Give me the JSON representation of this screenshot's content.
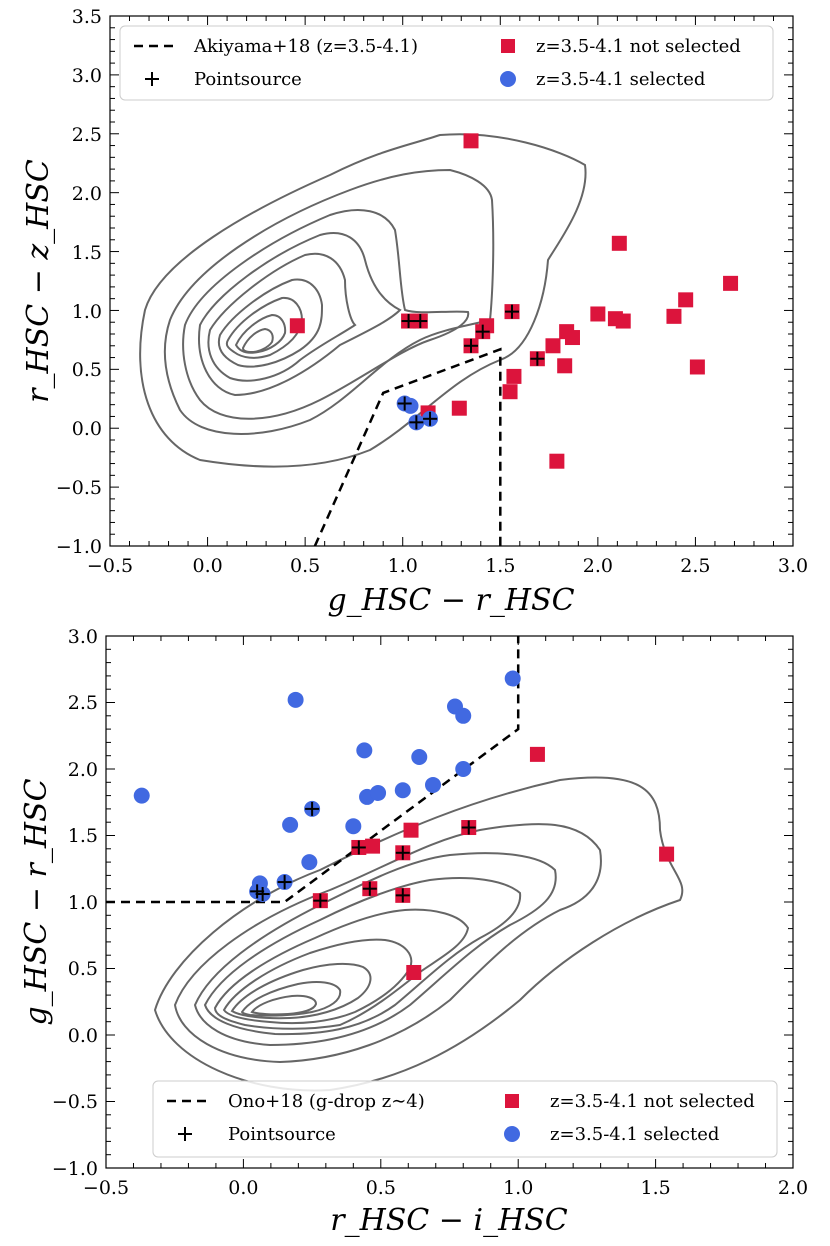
{
  "colors": {
    "not_selected": "#dc143c",
    "selected": "#4169e1",
    "contour": "#666666",
    "line": "#000000"
  },
  "chart_data": [
    {
      "type": "scatter",
      "xlabel": "g_HSC − r_HSC",
      "ylabel": "r_HSC − z_HSC",
      "xlim": [
        -0.5,
        3.0
      ],
      "ylim": [
        -1.0,
        3.5
      ],
      "xticks": [
        "−0.5",
        "0.0",
        "0.5",
        "1.0",
        "1.5",
        "2.0",
        "2.5",
        "3.0"
      ],
      "yticks": [
        "−1.0",
        "−0.5",
        "0.0",
        "0.5",
        "1.0",
        "1.5",
        "2.0",
        "2.5",
        "3.0",
        "3.5"
      ],
      "legend": {
        "placement": "top",
        "entries": [
          {
            "label": "Akiyama+18 (z=3.5-4.1)",
            "marker": "dashed-line"
          },
          {
            "label": "Pointsource",
            "marker": "plus"
          },
          {
            "label": "z=3.5-4.1 not selected",
            "marker": "square"
          },
          {
            "label": "z=3.5-4.1 selected",
            "marker": "circle"
          }
        ]
      },
      "selection_line": [
        [
          0.55,
          -1.0
        ],
        [
          0.9,
          0.3
        ],
        [
          1.5,
          0.67
        ],
        [
          1.5,
          -1.0
        ]
      ],
      "series": [
        {
          "name": "z=3.5-4.1 not selected",
          "points": [
            [
              0.46,
              0.87
            ],
            [
              1.03,
              0.91
            ],
            [
              1.09,
              0.91
            ],
            [
              1.35,
              2.44
            ],
            [
              1.35,
              0.7
            ],
            [
              1.41,
              0.82
            ],
            [
              1.43,
              0.87
            ],
            [
              1.56,
              0.99
            ],
            [
              1.55,
              0.31
            ],
            [
              1.57,
              0.44
            ],
            [
              1.29,
              0.17
            ],
            [
              1.13,
              0.13
            ],
            [
              1.69,
              0.59
            ],
            [
              1.77,
              0.7
            ],
            [
              1.79,
              -0.28
            ],
            [
              1.83,
              0.53
            ],
            [
              1.84,
              0.82
            ],
            [
              1.87,
              0.77
            ],
            [
              2.0,
              0.97
            ],
            [
              2.09,
              0.93
            ],
            [
              2.13,
              0.91
            ],
            [
              2.11,
              1.57
            ],
            [
              2.39,
              0.95
            ],
            [
              2.45,
              1.09
            ],
            [
              2.51,
              0.52
            ],
            [
              2.68,
              1.23
            ]
          ]
        },
        {
          "name": "z=3.5-4.1 selected",
          "points": [
            [
              1.01,
              0.21
            ],
            [
              1.04,
              0.19
            ],
            [
              1.07,
              0.05
            ],
            [
              1.14,
              0.08
            ]
          ]
        },
        {
          "name": "Pointsource",
          "points": [
            [
              1.03,
              0.91
            ],
            [
              1.09,
              0.91
            ],
            [
              1.35,
              0.7
            ],
            [
              1.41,
              0.82
            ],
            [
              1.56,
              0.99
            ],
            [
              1.69,
              0.59
            ],
            [
              1.01,
              0.21
            ],
            [
              1.07,
              0.05
            ],
            [
              1.14,
              0.08
            ]
          ]
        }
      ]
    },
    {
      "type": "scatter",
      "xlabel": "r_HSC − i_HSC",
      "ylabel": "g_HSC − r_HSC",
      "xlim": [
        -0.5,
        2.0
      ],
      "ylim": [
        -1.0,
        3.0
      ],
      "xticks": [
        "−0.5",
        "0.0",
        "0.5",
        "1.0",
        "1.5",
        "2.0"
      ],
      "yticks": [
        "−1.0",
        "−0.5",
        "0.0",
        "0.5",
        "1.0",
        "1.5",
        "2.0",
        "2.5",
        "3.0"
      ],
      "legend": {
        "placement": "bottom",
        "entries": [
          {
            "label": "Ono+18 (g-drop z∼4)",
            "marker": "dashed-line"
          },
          {
            "label": "Pointsource",
            "marker": "plus"
          },
          {
            "label": "z=3.5-4.1 not selected",
            "marker": "square"
          },
          {
            "label": "z=3.5-4.1 selected",
            "marker": "circle"
          }
        ]
      },
      "selection_line": [
        [
          -0.5,
          1.0
        ],
        [
          0.15,
          1.0
        ],
        [
          1.0,
          2.3
        ],
        [
          1.0,
          3.0
        ]
      ],
      "series": [
        {
          "name": "z=3.5-4.1 not selected",
          "points": [
            [
              0.28,
              1.01
            ],
            [
              0.42,
              1.41
            ],
            [
              0.47,
              1.42
            ],
            [
              0.46,
              1.1
            ],
            [
              0.58,
              1.37
            ],
            [
              0.58,
              1.05
            ],
            [
              0.61,
              1.54
            ],
            [
              0.62,
              0.47
            ],
            [
              0.82,
              1.56
            ],
            [
              1.07,
              2.11
            ],
            [
              1.54,
              1.36
            ]
          ]
        },
        {
          "name": "z=3.5-4.1 selected",
          "points": [
            [
              -0.37,
              1.8
            ],
            [
              0.05,
              1.08
            ],
            [
              0.06,
              1.14
            ],
            [
              0.07,
              1.06
            ],
            [
              0.15,
              1.15
            ],
            [
              0.17,
              1.58
            ],
            [
              0.19,
              2.52
            ],
            [
              0.24,
              1.3
            ],
            [
              0.25,
              1.7
            ],
            [
              0.4,
              1.57
            ],
            [
              0.44,
              2.14
            ],
            [
              0.45,
              1.79
            ],
            [
              0.49,
              1.82
            ],
            [
              0.58,
              1.84
            ],
            [
              0.64,
              2.09
            ],
            [
              0.69,
              1.88
            ],
            [
              0.77,
              2.47
            ],
            [
              0.8,
              2.4
            ],
            [
              0.8,
              2.0
            ],
            [
              0.98,
              2.68
            ]
          ]
        },
        {
          "name": "Pointsource",
          "points": [
            [
              0.05,
              1.08
            ],
            [
              0.07,
              1.06
            ],
            [
              0.15,
              1.15
            ],
            [
              0.25,
              1.7
            ],
            [
              0.28,
              1.01
            ],
            [
              0.42,
              1.41
            ],
            [
              0.46,
              1.1
            ],
            [
              0.58,
              1.37
            ],
            [
              0.58,
              1.05
            ],
            [
              0.82,
              1.56
            ]
          ]
        }
      ]
    }
  ]
}
